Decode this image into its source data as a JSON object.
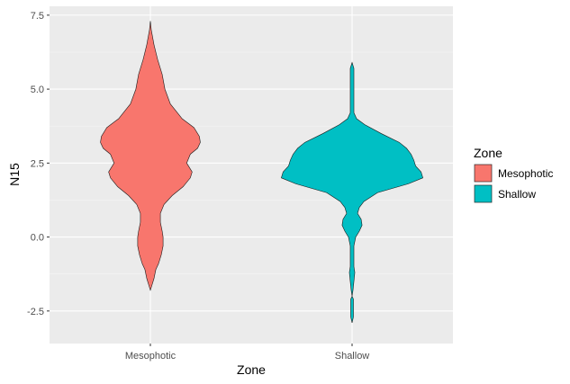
{
  "chart_data": {
    "type": "violin",
    "xlabel": "Zone",
    "ylabel": "N15",
    "categories": [
      "Mesophotic",
      "Shallow"
    ],
    "ylim": [
      -3.6,
      7.8
    ],
    "yticks": [
      -2.5,
      0.0,
      2.5,
      5.0,
      7.5
    ],
    "ytick_labels": [
      "-2.5",
      "0.0",
      "2.5",
      "5.0",
      "7.5"
    ],
    "grid": true,
    "legend": {
      "title": "Zone",
      "position": "right",
      "entries": [
        {
          "label": "Mesophotic",
          "color": "#F8766D"
        },
        {
          "label": "Shallow",
          "color": "#00BFC4"
        }
      ]
    },
    "series": [
      {
        "name": "Mesophotic",
        "color": "#F8766D",
        "profile": [
          [
            7.3,
            0.0
          ],
          [
            7.0,
            0.01
          ],
          [
            6.5,
            0.04
          ],
          [
            6.0,
            0.08
          ],
          [
            5.5,
            0.13
          ],
          [
            5.0,
            0.16
          ],
          [
            4.5,
            0.22
          ],
          [
            4.0,
            0.35
          ],
          [
            3.7,
            0.48
          ],
          [
            3.4,
            0.54
          ],
          [
            3.2,
            0.55
          ],
          [
            3.0,
            0.52
          ],
          [
            2.8,
            0.44
          ],
          [
            2.5,
            0.4
          ],
          [
            2.2,
            0.46
          ],
          [
            2.0,
            0.44
          ],
          [
            1.7,
            0.36
          ],
          [
            1.4,
            0.24
          ],
          [
            1.1,
            0.15
          ],
          [
            0.8,
            0.11
          ],
          [
            0.5,
            0.11
          ],
          [
            0.2,
            0.13
          ],
          [
            0.0,
            0.14
          ],
          [
            -0.3,
            0.14
          ],
          [
            -0.6,
            0.12
          ],
          [
            -0.9,
            0.09
          ],
          [
            -1.1,
            0.06
          ],
          [
            -1.4,
            0.04
          ],
          [
            -1.6,
            0.02
          ],
          [
            -1.8,
            0.0
          ]
        ]
      },
      {
        "name": "Shallow",
        "color": "#00BFC4",
        "profile": [
          [
            5.9,
            0.0
          ],
          [
            5.7,
            0.02
          ],
          [
            5.4,
            0.02
          ],
          [
            5.0,
            0.02
          ],
          [
            4.5,
            0.02
          ],
          [
            4.2,
            0.02
          ],
          [
            4.0,
            0.05
          ],
          [
            3.8,
            0.14
          ],
          [
            3.5,
            0.32
          ],
          [
            3.2,
            0.52
          ],
          [
            3.0,
            0.6
          ],
          [
            2.8,
            0.65
          ],
          [
            2.6,
            0.68
          ],
          [
            2.4,
            0.7
          ],
          [
            2.2,
            0.76
          ],
          [
            2.0,
            0.78
          ],
          [
            1.8,
            0.62
          ],
          [
            1.5,
            0.28
          ],
          [
            1.2,
            0.13
          ],
          [
            1.0,
            0.08
          ],
          [
            0.8,
            0.06
          ],
          [
            0.6,
            0.1
          ],
          [
            0.4,
            0.11
          ],
          [
            0.2,
            0.08
          ],
          [
            0.0,
            0.04
          ],
          [
            -0.3,
            0.02
          ],
          [
            -0.6,
            0.02
          ],
          [
            -1.0,
            0.02
          ],
          [
            -1.2,
            0.03
          ],
          [
            -1.5,
            0.02
          ],
          [
            -1.8,
            0.01
          ],
          [
            -2.0,
            0.0
          ],
          [
            -2.1,
            0.015
          ],
          [
            -2.4,
            0.015
          ],
          [
            -2.7,
            0.015
          ],
          [
            -2.9,
            0.0
          ]
        ]
      }
    ]
  }
}
